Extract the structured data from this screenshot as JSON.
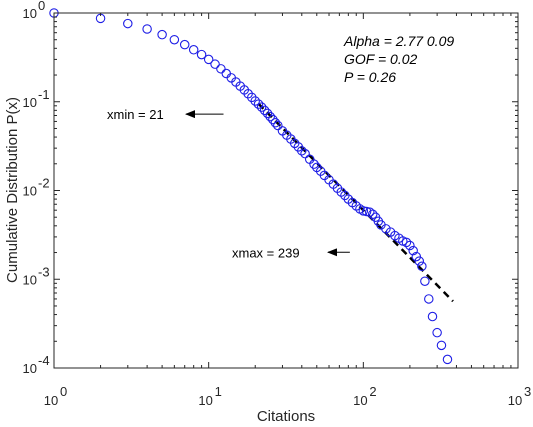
{
  "chart_data": {
    "type": "scatter",
    "xlabel": "Citations",
    "ylabel": "Cumulative Distribution P(x)",
    "x_scale": "log",
    "y_scale": "log",
    "xlim": [
      1,
      1000
    ],
    "ylim": [
      0.0001,
      1
    ],
    "x_ticks": [
      {
        "value": 1,
        "base": "10",
        "exp": "0"
      },
      {
        "value": 10,
        "base": "10",
        "exp": "1"
      },
      {
        "value": 100,
        "base": "10",
        "exp": "2"
      },
      {
        "value": 1000,
        "base": "10",
        "exp": "3"
      }
    ],
    "y_ticks": [
      {
        "value": 0.0001,
        "base": "10",
        "exp": "-4"
      },
      {
        "value": 0.001,
        "base": "10",
        "exp": "-3"
      },
      {
        "value": 0.01,
        "base": "10",
        "exp": "-2"
      },
      {
        "value": 0.1,
        "base": "10",
        "exp": "-1"
      },
      {
        "value": 1,
        "base": "10",
        "exp": "0"
      }
    ],
    "grid": false,
    "marker": "open-circle",
    "marker_color": "#1f1fe6",
    "fit_line_color": "#000000",
    "series": [
      {
        "values": [
          [
            1,
            1.0
          ],
          [
            2,
            0.87
          ],
          [
            3,
            0.76
          ],
          [
            4,
            0.66
          ],
          [
            5,
            0.57
          ],
          [
            6,
            0.5
          ],
          [
            7,
            0.44
          ],
          [
            8,
            0.385
          ],
          [
            9,
            0.34
          ],
          [
            10,
            0.3
          ],
          [
            11,
            0.265
          ],
          [
            12,
            0.235
          ],
          [
            13,
            0.208
          ],
          [
            14,
            0.186
          ],
          [
            15,
            0.167
          ],
          [
            16,
            0.15
          ],
          [
            17,
            0.136
          ],
          [
            18,
            0.123
          ],
          [
            19,
            0.112
          ],
          [
            20,
            0.102
          ],
          [
            21,
            0.094
          ],
          [
            22,
            0.087
          ],
          [
            23,
            0.08
          ],
          [
            24,
            0.074
          ],
          [
            25,
            0.068
          ],
          [
            26,
            0.063
          ],
          [
            27,
            0.058
          ],
          [
            28,
            0.054
          ],
          [
            30,
            0.047
          ],
          [
            32,
            0.042
          ],
          [
            34,
            0.038
          ],
          [
            36,
            0.034
          ],
          [
            38,
            0.031
          ],
          [
            40,
            0.028
          ],
          [
            42,
            0.026
          ],
          [
            45,
            0.0225
          ],
          [
            48,
            0.0198
          ],
          [
            50,
            0.0182
          ],
          [
            53,
            0.0165
          ],
          [
            56,
            0.0148
          ],
          [
            60,
            0.0132
          ],
          [
            64,
            0.0118
          ],
          [
            68,
            0.0106
          ],
          [
            72,
            0.0096
          ],
          [
            76,
            0.0088
          ],
          [
            80,
            0.008
          ],
          [
            85,
            0.0073
          ],
          [
            90,
            0.0067
          ],
          [
            95,
            0.0062
          ],
          [
            100,
            0.0059
          ],
          [
            105,
            0.0058
          ],
          [
            110,
            0.0057
          ],
          [
            115,
            0.0054
          ],
          [
            120,
            0.005
          ],
          [
            125,
            0.0045
          ],
          [
            130,
            0.0041
          ],
          [
            140,
            0.0037
          ],
          [
            150,
            0.0034
          ],
          [
            160,
            0.0031
          ],
          [
            170,
            0.0029
          ],
          [
            180,
            0.0027
          ],
          [
            190,
            0.0026
          ],
          [
            200,
            0.0024
          ],
          [
            210,
            0.0021
          ],
          [
            220,
            0.0018
          ],
          [
            230,
            0.0016
          ],
          [
            239,
            0.0014
          ],
          [
            250,
            0.00095
          ],
          [
            265,
            0.0006
          ],
          [
            280,
            0.00038
          ],
          [
            300,
            0.00025
          ],
          [
            320,
            0.00018
          ],
          [
            350,
            0.000125
          ]
        ]
      }
    ],
    "fit_line": {
      "style": "dashed",
      "x_range": [
        21,
        380
      ],
      "alpha": 2.77,
      "y_at_xmin": 0.095
    },
    "stats_lines": [
      "Alpha = 2.77  0.09",
      "GOF = 0.02",
      "P = 0.26"
    ],
    "annotations": [
      {
        "text": "xmin = 21",
        "x": 21,
        "y": 0.094
      },
      {
        "text": "xmax = 239",
        "x": 239,
        "y": 0.0014
      }
    ]
  }
}
